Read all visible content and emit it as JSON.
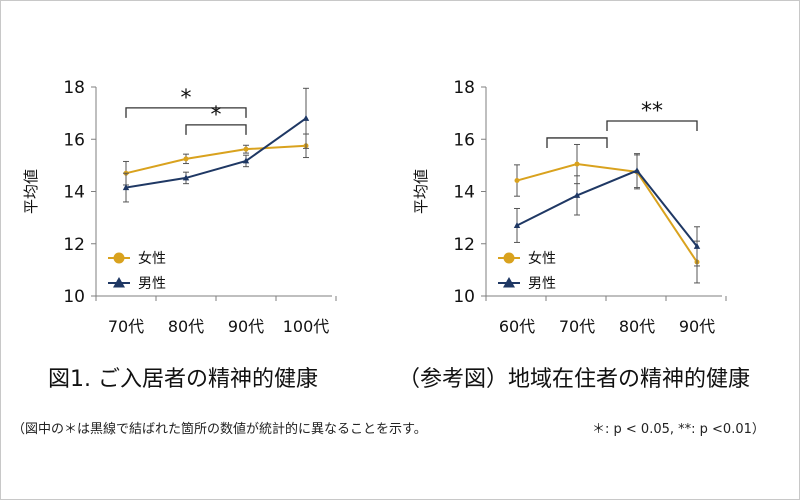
{
  "colors": {
    "female": "#D9A21E",
    "male": "#1F3864",
    "axis": "#7f7f7f",
    "text": "#111111"
  },
  "chart_data": [
    {
      "type": "line",
      "caption": "図1. ご入居者の精神的健康",
      "ylabel": "平均値",
      "ylim": [
        10,
        18
      ],
      "yticks": [
        "10",
        "12",
        "14",
        "16",
        "18"
      ],
      "categories": [
        "70代",
        "80代",
        "90代",
        "100代"
      ],
      "legend_position": "bottom-left",
      "series": [
        {
          "name": "女性",
          "marker": "circle",
          "values": [
            14.7,
            15.25,
            15.62,
            15.75
          ],
          "err": [
            0.45,
            0.18,
            0.15,
            0.45
          ]
        },
        {
          "name": "男性",
          "marker": "triangle",
          "values": [
            14.15,
            14.52,
            15.17,
            16.8
          ],
          "err": [
            0.55,
            0.22,
            0.22,
            1.15
          ]
        }
      ],
      "brackets": [
        {
          "from": 0,
          "to": 2,
          "level": 17.2,
          "label": "*"
        },
        {
          "from": 1,
          "to": 2,
          "level": 16.55,
          "label": "*"
        }
      ]
    },
    {
      "type": "line",
      "caption": "（参考図）地域在住者の精神的健康",
      "ylabel": "平均値",
      "ylim": [
        10,
        18
      ],
      "yticks": [
        "10",
        "12",
        "14",
        "16",
        "18"
      ],
      "categories": [
        "60代",
        "70代",
        "80代",
        "90代"
      ],
      "legend_position": "bottom-left",
      "series": [
        {
          "name": "女性",
          "marker": "circle",
          "values": [
            14.42,
            15.05,
            14.75,
            11.3
          ],
          "err": [
            0.6,
            0.75,
            0.65,
            0.8
          ]
        },
        {
          "name": "男性",
          "marker": "triangle",
          "values": [
            12.7,
            13.85,
            14.8,
            11.9
          ],
          "err": [
            0.65,
            0.75,
            0.65,
            0.75
          ]
        }
      ],
      "brackets": [
        {
          "from": 1.5,
          "to": 3,
          "level": 16.7,
          "label": "**",
          "step_from": 0.5,
          "step_to": 1.5,
          "step_level": 16.05
        }
      ]
    }
  ],
  "footnote": {
    "left": "（図中の＊は黒線で結ばれた箇所の数値が統計的に異なることを示す。",
    "right": "＊: p < 0.05, **: p <0.01）"
  }
}
